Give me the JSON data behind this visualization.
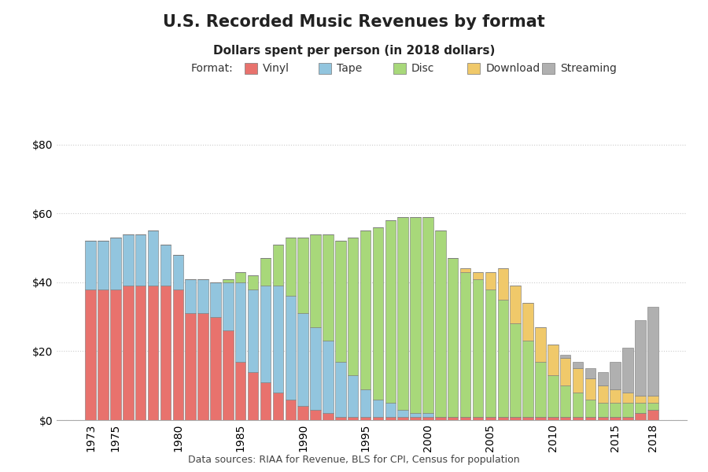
{
  "title": "U.S. Recorded Music Revenues by format",
  "subtitle": "Dollars spent per person (in 2018 dollars)",
  "source": "Data sources: RIAA for Revenue, BLS for CPI, Census for population",
  "legend_label": "Format:",
  "formats": [
    "Vinyl",
    "Tape",
    "Disc",
    "Download",
    "Streaming"
  ],
  "colors": [
    "#e8726d",
    "#92c5de",
    "#a8d87a",
    "#f0c96a",
    "#b0b0b0"
  ],
  "years": [
    1973,
    1974,
    1975,
    1976,
    1977,
    1978,
    1979,
    1980,
    1981,
    1982,
    1983,
    1984,
    1985,
    1986,
    1987,
    1988,
    1989,
    1990,
    1991,
    1992,
    1993,
    1994,
    1995,
    1996,
    1997,
    1998,
    1999,
    2000,
    2001,
    2002,
    2003,
    2004,
    2005,
    2006,
    2007,
    2008,
    2009,
    2010,
    2011,
    2012,
    2013,
    2014,
    2015,
    2016,
    2017,
    2018
  ],
  "vinyl": [
    38,
    38,
    38,
    39,
    39,
    39,
    39,
    38,
    31,
    31,
    30,
    26,
    17,
    14,
    11,
    8,
    6,
    4,
    3,
    2,
    1,
    1,
    1,
    1,
    1,
    1,
    1,
    1,
    1,
    1,
    1,
    1,
    1,
    1,
    1,
    1,
    1,
    1,
    1,
    1,
    1,
    1,
    1,
    1,
    2,
    3
  ],
  "tape": [
    14,
    14,
    15,
    15,
    15,
    16,
    12,
    10,
    10,
    10,
    10,
    14,
    23,
    24,
    28,
    31,
    30,
    27,
    24,
    21,
    16,
    12,
    8,
    5,
    4,
    2,
    1,
    1,
    0,
    0,
    0,
    0,
    0,
    0,
    0,
    0,
    0,
    0,
    0,
    0,
    0,
    0,
    0,
    0,
    0,
    0
  ],
  "disc": [
    0,
    0,
    0,
    0,
    0,
    0,
    0,
    0,
    0,
    0,
    0,
    1,
    3,
    4,
    8,
    12,
    17,
    22,
    27,
    31,
    35,
    40,
    46,
    50,
    53,
    56,
    57,
    57,
    54,
    46,
    42,
    40,
    37,
    34,
    27,
    22,
    16,
    12,
    9,
    7,
    5,
    4,
    4,
    4,
    3,
    2
  ],
  "download": [
    0,
    0,
    0,
    0,
    0,
    0,
    0,
    0,
    0,
    0,
    0,
    0,
    0,
    0,
    0,
    0,
    0,
    0,
    0,
    0,
    0,
    0,
    0,
    0,
    0,
    0,
    0,
    0,
    0,
    0,
    1,
    2,
    5,
    9,
    11,
    11,
    10,
    9,
    8,
    7,
    6,
    5,
    4,
    3,
    2,
    2
  ],
  "streaming": [
    0,
    0,
    0,
    0,
    0,
    0,
    0,
    0,
    0,
    0,
    0,
    0,
    0,
    0,
    0,
    0,
    0,
    0,
    0,
    0,
    0,
    0,
    0,
    0,
    0,
    0,
    0,
    0,
    0,
    0,
    0,
    0,
    0,
    0,
    0,
    0,
    0,
    0,
    1,
    2,
    3,
    4,
    8,
    13,
    22,
    26
  ],
  "ylim": [
    0,
    85
  ],
  "yticks": [
    0,
    20,
    40,
    60,
    80
  ],
  "tick_years": [
    1973,
    1975,
    1980,
    1985,
    1990,
    1995,
    2000,
    2005,
    2010,
    2015,
    2018
  ],
  "background_color": "#ffffff",
  "grid_color": "#cccccc"
}
